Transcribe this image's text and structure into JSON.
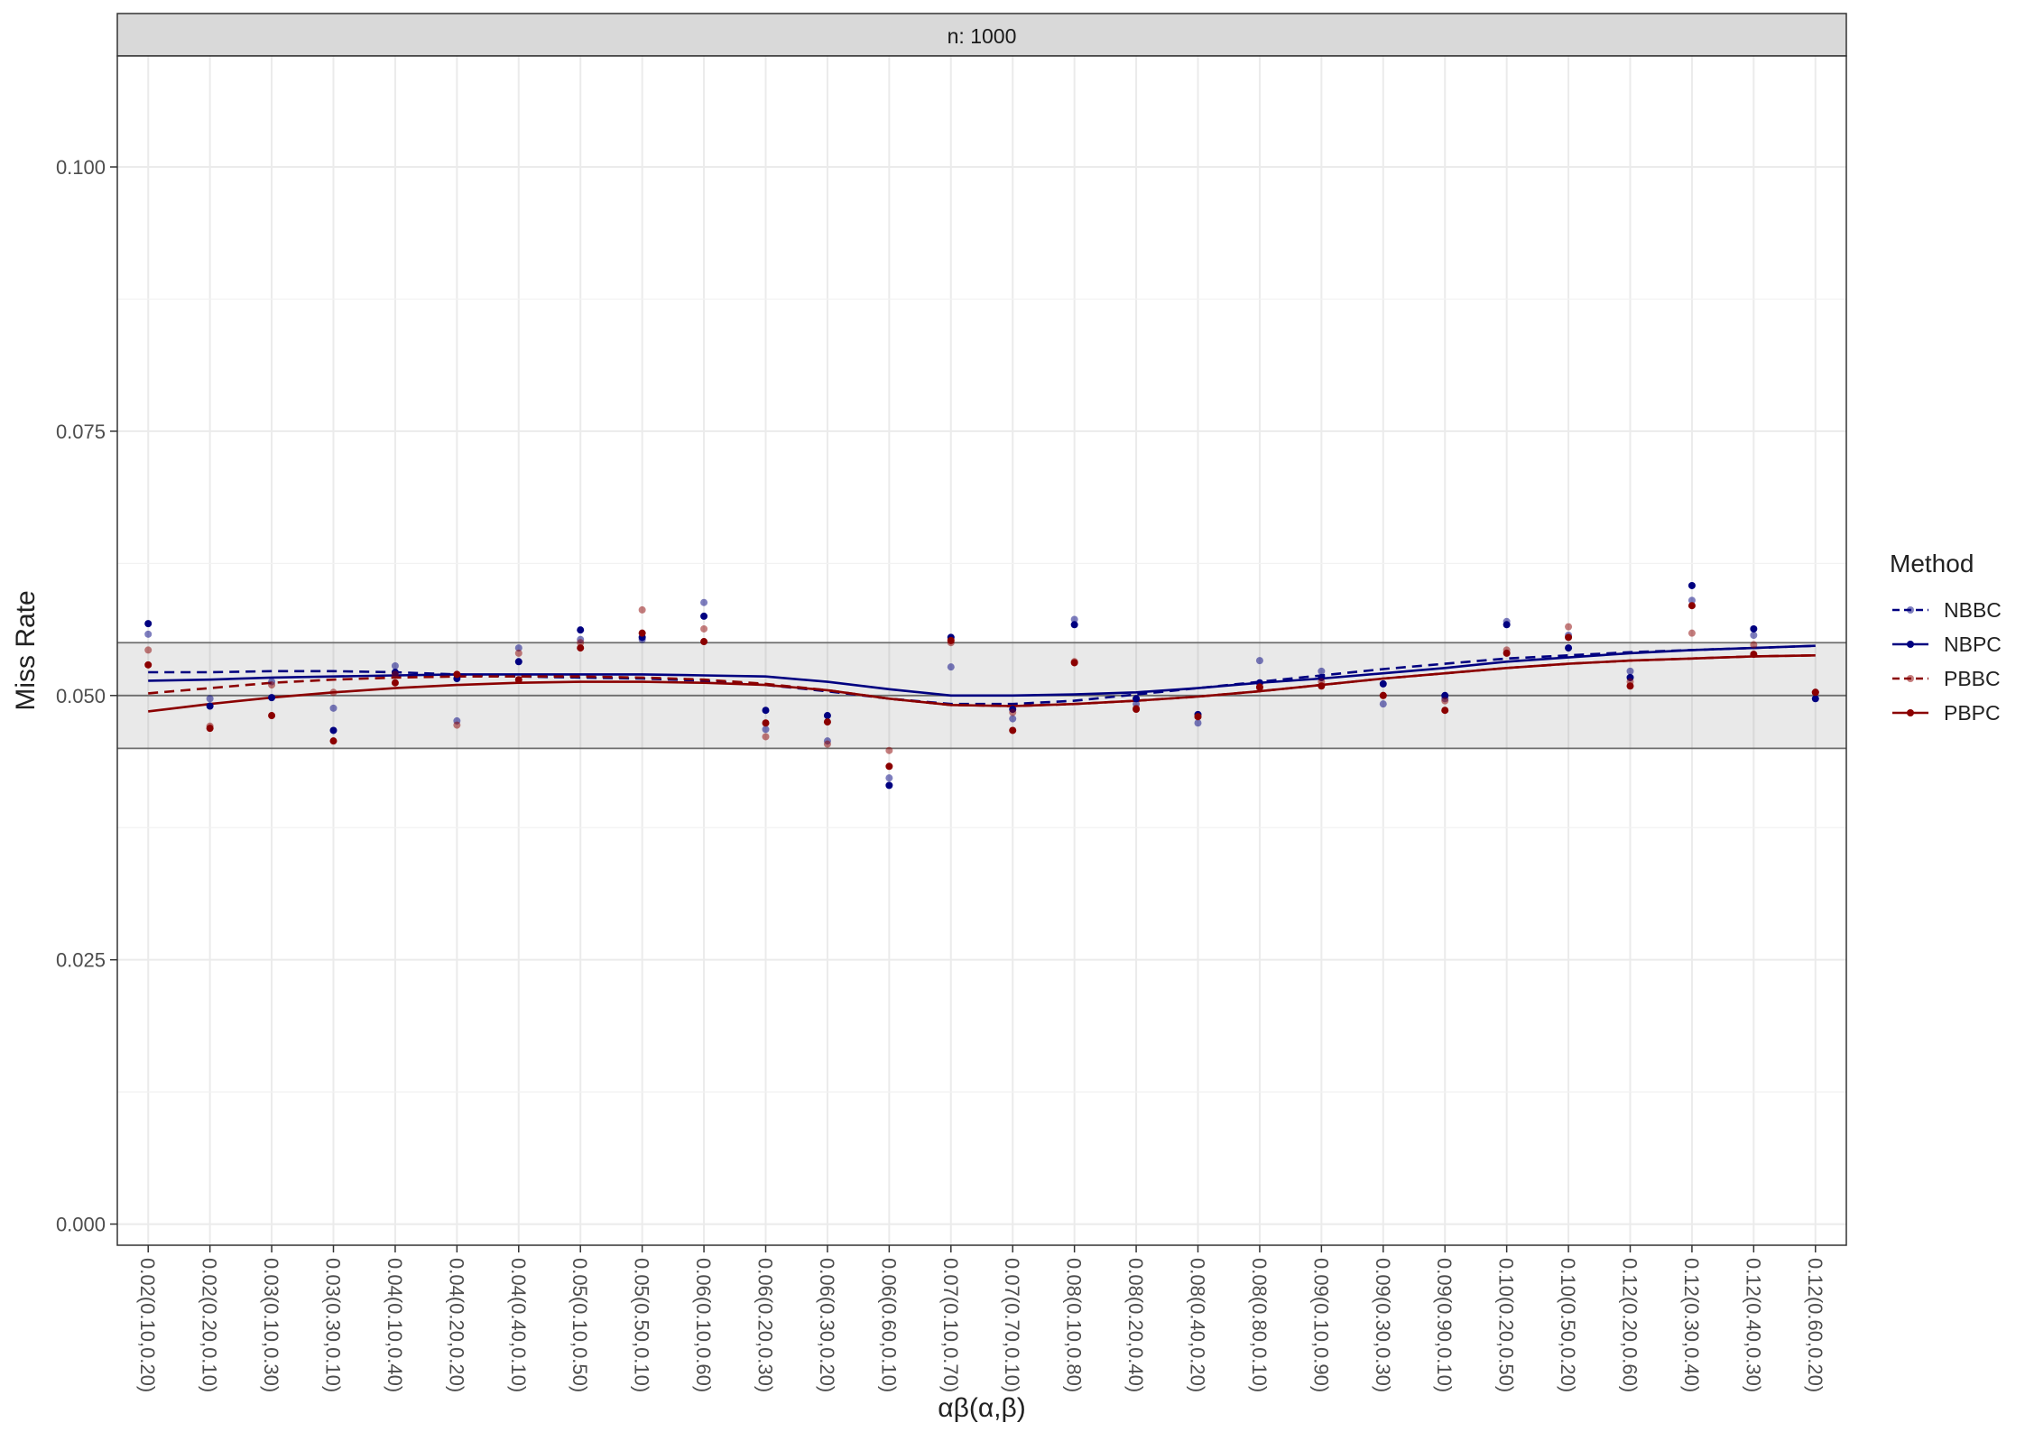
{
  "chart_data": {
    "type": "scatter",
    "facet_label": "n: 1000",
    "xlabel": "αβ(α,β)",
    "ylabel": "Miss Rate",
    "ylim": [
      -0.002,
      0.1105
    ],
    "yticks": [
      0.0,
      0.025,
      0.05,
      0.075,
      0.1
    ],
    "ytick_labels": [
      "0.000",
      "0.025",
      "0.050",
      "0.075",
      "0.100"
    ],
    "grid": true,
    "reference_band": {
      "lower": 0.045,
      "center": 0.05,
      "upper": 0.055
    },
    "categories": [
      "0.02(0.10,0.20)",
      "0.02(0.20,0.10)",
      "0.03(0.10,0.30)",
      "0.03(0.30,0.10)",
      "0.04(0.10,0.40)",
      "0.04(0.20,0.20)",
      "0.04(0.40,0.10)",
      "0.05(0.10,0.50)",
      "0.05(0.50,0.10)",
      "0.06(0.10,0.60)",
      "0.06(0.20,0.30)",
      "0.06(0.30,0.20)",
      "0.06(0.60,0.10)",
      "0.07(0.10,0.70)",
      "0.07(0.70,0.10)",
      "0.08(0.10,0.80)",
      "0.08(0.20,0.40)",
      "0.08(0.40,0.20)",
      "0.08(0.80,0.10)",
      "0.09(0.10,0.90)",
      "0.09(0.30,0.30)",
      "0.09(0.90,0.10)",
      "0.10(0.20,0.50)",
      "0.10(0.50,0.20)",
      "0.12(0.20,0.60)",
      "0.12(0.30,0.40)",
      "0.12(0.40,0.30)",
      "0.12(0.60,0.20)"
    ],
    "legend": {
      "title": "Method",
      "position": "right"
    },
    "series": [
      {
        "name": "NBBC",
        "color": "#000080",
        "opacity": 0.5,
        "linetype": "dashed",
        "points": [
          0.0558,
          0.0497,
          0.0513,
          0.0488,
          0.0528,
          0.0476,
          0.0545,
          0.0553,
          0.0553,
          0.0588,
          0.0468,
          0.0457,
          0.0422,
          0.0527,
          0.0478,
          0.0572,
          0.0492,
          0.0474,
          0.0533,
          0.0523,
          0.0492,
          0.0497,
          0.057,
          0.0557,
          0.0523,
          0.059,
          0.0557,
          0.0503
        ],
        "smooth": [
          0.0522,
          0.0522,
          0.0523,
          0.0523,
          0.0522,
          0.052,
          0.0518,
          0.0517,
          0.0516,
          0.0514,
          0.051,
          0.0504,
          0.0497,
          0.0492,
          0.0492,
          0.0495,
          0.0501,
          0.0507,
          0.0513,
          0.0519,
          0.0525,
          0.053,
          0.0535,
          0.0538,
          0.0541,
          0.0543,
          0.0545,
          0.0547
        ]
      },
      {
        "name": "NBPC",
        "color": "#000080",
        "opacity": 1.0,
        "linetype": "solid",
        "points": [
          0.0568,
          0.049,
          0.0498,
          0.0467,
          0.0522,
          0.0516,
          0.0532,
          0.0562,
          0.0555,
          0.0575,
          0.0486,
          0.0481,
          0.0415,
          0.0555,
          0.0487,
          0.0567,
          0.0497,
          0.0482,
          0.0512,
          0.0517,
          0.0511,
          0.05,
          0.0567,
          0.0545,
          0.0517,
          0.0604,
          0.0563,
          0.0497
        ],
        "smooth": [
          0.0514,
          0.0515,
          0.0517,
          0.0518,
          0.0519,
          0.052,
          0.052,
          0.052,
          0.052,
          0.0519,
          0.0518,
          0.0513,
          0.0506,
          0.05,
          0.05,
          0.0501,
          0.0503,
          0.0507,
          0.0512,
          0.0516,
          0.0521,
          0.0526,
          0.0532,
          0.0536,
          0.054,
          0.0543,
          0.0545,
          0.0547
        ]
      },
      {
        "name": "PBBC",
        "color": "#8b0000",
        "opacity": 0.5,
        "linetype": "dashed",
        "points": [
          0.0543,
          0.0471,
          0.051,
          0.0503,
          0.052,
          0.0472,
          0.054,
          0.055,
          0.0581,
          0.0563,
          0.0461,
          0.0454,
          0.0448,
          0.055,
          0.0484,
          0.0532,
          0.0488,
          0.048,
          0.0507,
          0.0513,
          0.05,
          0.0495,
          0.0543,
          0.0565,
          0.0513,
          0.0559,
          0.0548,
          0.0503
        ],
        "smooth": [
          0.0502,
          0.0507,
          0.0512,
          0.0515,
          0.0517,
          0.0518,
          0.0518,
          0.0518,
          0.0517,
          0.0515,
          0.0511,
          0.0505,
          0.0497,
          0.0491,
          0.049,
          0.0492,
          0.0495,
          0.0499,
          0.0504,
          0.051,
          0.0516,
          0.0521,
          0.0526,
          0.053,
          0.0533,
          0.0535,
          0.0537,
          0.0538
        ]
      },
      {
        "name": "PBPC",
        "color": "#8b0000",
        "opacity": 1.0,
        "linetype": "solid",
        "points": [
          0.0529,
          0.0469,
          0.0481,
          0.0457,
          0.0512,
          0.052,
          0.0515,
          0.0545,
          0.0559,
          0.0551,
          0.0474,
          0.0475,
          0.0433,
          0.0552,
          0.0467,
          0.0531,
          0.0487,
          0.048,
          0.0508,
          0.0509,
          0.05,
          0.0486,
          0.054,
          0.0555,
          0.0509,
          0.0585,
          0.0539,
          0.0503
        ],
        "smooth": [
          0.0485,
          0.0492,
          0.0498,
          0.0503,
          0.0507,
          0.051,
          0.0512,
          0.0513,
          0.0513,
          0.0512,
          0.051,
          0.0505,
          0.0497,
          0.0491,
          0.049,
          0.0492,
          0.0495,
          0.0499,
          0.0504,
          0.051,
          0.0516,
          0.0521,
          0.0526,
          0.053,
          0.0533,
          0.0535,
          0.0537,
          0.0538
        ]
      }
    ]
  }
}
